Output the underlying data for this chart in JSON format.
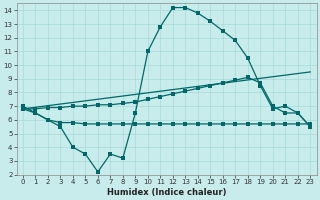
{
  "xlabel": "Humidex (Indice chaleur)",
  "bg_color": "#c8ecec",
  "line_color": "#006868",
  "grid_color": "#a8d8d8",
  "xlim": [
    -0.5,
    23.5
  ],
  "ylim": [
    2,
    14.5
  ],
  "xticks": [
    0,
    1,
    2,
    3,
    4,
    5,
    6,
    7,
    8,
    9,
    10,
    11,
    12,
    13,
    14,
    15,
    16,
    17,
    18,
    19,
    20,
    21,
    22,
    23
  ],
  "yticks": [
    2,
    3,
    4,
    5,
    6,
    7,
    8,
    9,
    10,
    11,
    12,
    13,
    14
  ],
  "curve1_x": [
    0,
    1,
    2,
    3,
    4,
    5,
    6,
    7,
    8,
    9,
    10,
    11,
    12,
    13,
    14,
    15,
    16,
    17,
    18,
    19,
    20,
    21,
    22,
    23
  ],
  "curve1_y": [
    7.0,
    6.5,
    6.0,
    5.5,
    4.0,
    3.5,
    2.2,
    3.5,
    3.2,
    6.5,
    11.0,
    12.8,
    14.2,
    14.2,
    13.8,
    13.2,
    12.5,
    11.8,
    10.5,
    8.5,
    6.8,
    7.0,
    6.5,
    5.5
  ],
  "curve2_x": [
    0,
    1,
    2,
    3,
    4,
    5,
    6,
    7,
    8,
    9,
    10,
    11,
    12,
    13,
    14,
    15,
    16,
    17,
    18,
    19,
    20,
    21,
    22,
    23
  ],
  "curve2_y": [
    6.8,
    6.5,
    6.0,
    5.8,
    5.8,
    5.7,
    5.7,
    5.7,
    5.7,
    5.7,
    5.7,
    5.7,
    5.7,
    5.7,
    5.7,
    5.7,
    5.7,
    5.7,
    5.7,
    5.7,
    5.7,
    5.7,
    5.7,
    5.7
  ],
  "curve3_x": [
    0,
    1,
    2,
    3,
    4,
    5,
    6,
    7,
    8,
    9,
    10,
    11,
    12,
    13,
    14,
    15,
    16,
    17,
    18,
    19,
    20,
    21,
    22,
    23
  ],
  "curve3_y": [
    6.8,
    6.8,
    6.9,
    6.9,
    7.0,
    7.0,
    7.1,
    7.1,
    7.2,
    7.3,
    7.5,
    7.7,
    7.9,
    8.1,
    8.3,
    8.5,
    8.7,
    8.9,
    9.1,
    8.7,
    7.0,
    6.5,
    6.5,
    5.5
  ],
  "curve4_x": [
    0,
    23
  ],
  "curve4_y": [
    6.8,
    9.5
  ]
}
